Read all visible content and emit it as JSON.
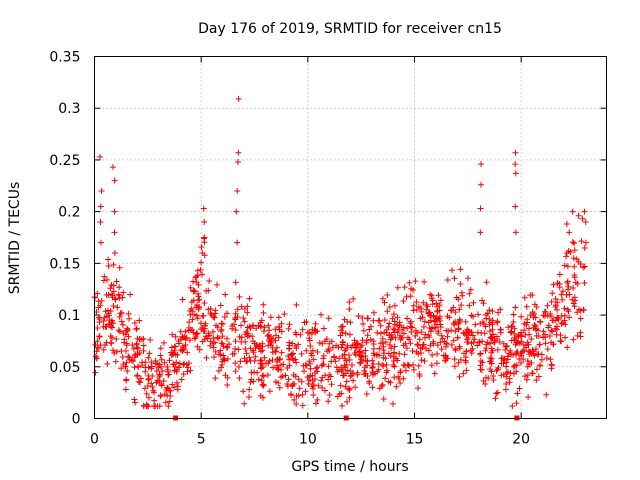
{
  "chart_data": {
    "type": "scatter",
    "title": "Day 176 of 2019, SRMTID for receiver cn15",
    "xlabel": "GPS time / hours",
    "ylabel": "SRMTID / TECUs",
    "xlim": [
      0,
      24
    ],
    "ylim": [
      0,
      0.35
    ],
    "x_ticks": [
      0,
      5,
      10,
      15,
      20
    ],
    "x_tick_labels": [
      "0",
      "5",
      "10",
      "15",
      "20"
    ],
    "y_ticks": [
      0,
      0.05,
      0.1,
      0.15,
      0.2,
      0.25,
      0.3,
      0.35
    ],
    "y_tick_labels": [
      "0",
      "0.05",
      "0.1",
      "0.15",
      "0.2",
      "0.25",
      "0.3",
      "0.35"
    ],
    "grid": true,
    "marker": "+",
    "color": "#ff0000",
    "gap_markers": [
      3.8,
      11.8,
      19.8
    ],
    "trend": [
      [
        0,
        0.085
      ],
      [
        0.3,
        0.1
      ],
      [
        0.7,
        0.11
      ],
      [
        1.0,
        0.1
      ],
      [
        1.5,
        0.075
      ],
      [
        2.0,
        0.06
      ],
      [
        2.5,
        0.045
      ],
      [
        3.0,
        0.035
      ],
      [
        3.5,
        0.035
      ],
      [
        4.0,
        0.06
      ],
      [
        4.5,
        0.09
      ],
      [
        5.0,
        0.12
      ],
      [
        5.5,
        0.085
      ],
      [
        6.0,
        0.07
      ],
      [
        6.5,
        0.085
      ],
      [
        7.0,
        0.075
      ],
      [
        7.5,
        0.07
      ],
      [
        8.0,
        0.06
      ],
      [
        9.0,
        0.055
      ],
      [
        10.0,
        0.055
      ],
      [
        11.0,
        0.05
      ],
      [
        12.0,
        0.06
      ],
      [
        13.0,
        0.065
      ],
      [
        14.0,
        0.07
      ],
      [
        15.0,
        0.08
      ],
      [
        16.0,
        0.085
      ],
      [
        17.0,
        0.085
      ],
      [
        18.0,
        0.08
      ],
      [
        19.0,
        0.07
      ],
      [
        20.0,
        0.065
      ],
      [
        20.5,
        0.07
      ],
      [
        21.0,
        0.08
      ],
      [
        21.5,
        0.09
      ],
      [
        22.0,
        0.11
      ],
      [
        22.5,
        0.13
      ],
      [
        23.0,
        0.14
      ]
    ],
    "spikes": [
      {
        "x": 0.3,
        "values": [
          0.17,
          0.19,
          0.205,
          0.22,
          0.253
        ]
      },
      {
        "x": 0.9,
        "values": [
          0.16,
          0.18,
          0.2,
          0.23,
          0.243
        ]
      },
      {
        "x": 5.1,
        "values": [
          0.16,
          0.175,
          0.19,
          0.203
        ]
      },
      {
        "x": 6.7,
        "values": [
          0.17,
          0.2,
          0.22,
          0.248,
          0.257,
          0.309
        ]
      },
      {
        "x": 18.1,
        "values": [
          0.18,
          0.203,
          0.226,
          0.246
        ]
      },
      {
        "x": 19.7,
        "values": [
          0.18,
          0.205,
          0.237,
          0.246,
          0.257
        ]
      },
      {
        "x": 22.2,
        "values": [
          0.16,
          0.18,
          0.188
        ]
      },
      {
        "x": 23.0,
        "values": [
          0.17,
          0.19
        ]
      }
    ]
  }
}
